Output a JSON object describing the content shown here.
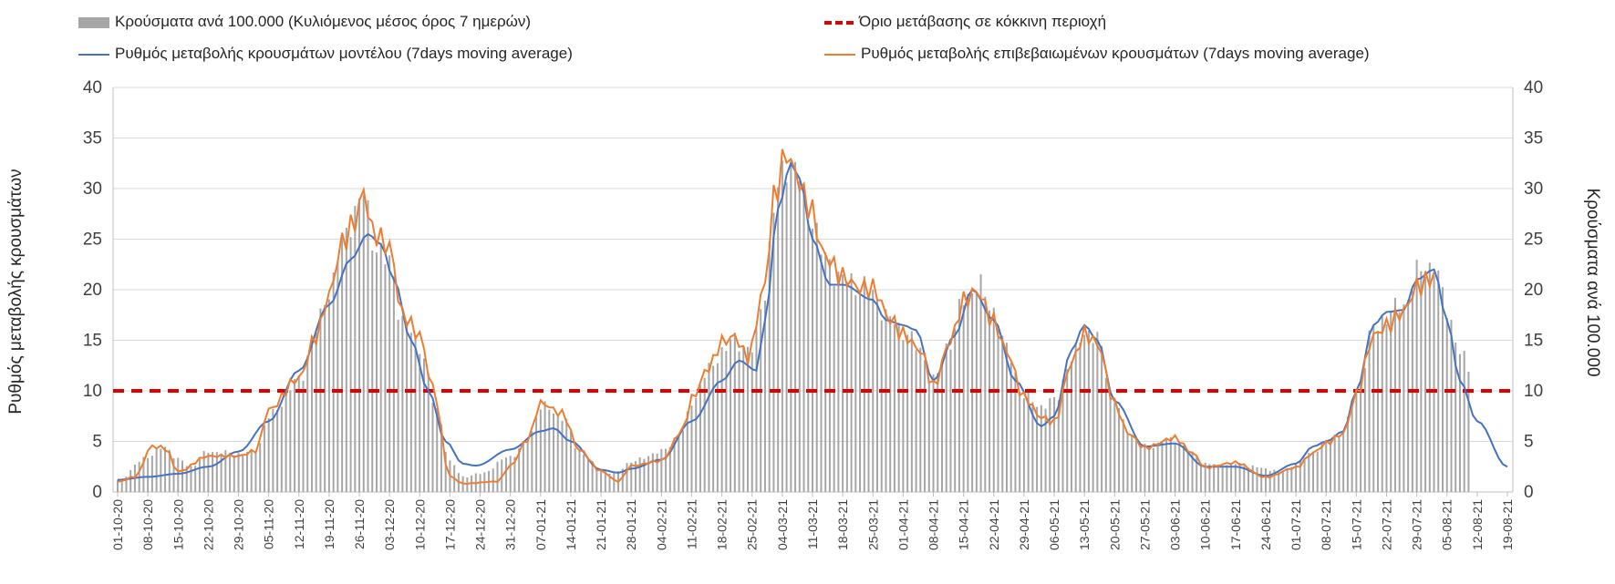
{
  "chart_data": {
    "type": "bar+line",
    "legend": {
      "bars": "Κρούσματα ανά 100.000 (Κυλιόμενος μέσος όρος 7 ημερών)",
      "threshold": "Όριο μετάβασης σε κόκκινη περιοχή",
      "model": "Ρυθμός μεταβολής κρουσμάτων μοντέλου (7days moving average)",
      "confirmed": "Ρυθμός μεταβολής επιβεβαιωμένων κρουσμάτων (7days moving average)"
    },
    "ylabel_left": "Ρυθμός μεταβολής κρουσμάτων",
    "ylabel_right": "Κρούσματα ανά 100.000",
    "ylim": [
      0,
      40
    ],
    "yticks": [
      0,
      5,
      10,
      15,
      20,
      25,
      30,
      35,
      40
    ],
    "threshold": 10,
    "x_start": "2020-10-01",
    "x_end": "2021-08-19",
    "xtick_labels": [
      "01-10-20",
      "08-10-20",
      "15-10-20",
      "22-10-20",
      "29-10-20",
      "05-11-20",
      "12-11-20",
      "19-11-20",
      "26-11-20",
      "03-12-20",
      "10-12-20",
      "17-12-20",
      "24-12-20",
      "31-12-20",
      "07-01-21",
      "14-01-21",
      "21-01-21",
      "28-01-21",
      "04-02-21",
      "11-02-21",
      "18-02-21",
      "25-02-21",
      "04-03-21",
      "11-03-21",
      "18-03-21",
      "25-03-21",
      "01-04-21",
      "08-04-21",
      "15-04-21",
      "22-04-21",
      "29-04-21",
      "06-05-21",
      "13-05-21",
      "20-05-21",
      "27-05-21",
      "03-06-21",
      "10-06-21",
      "17-06-21",
      "24-06-21",
      "01-07-21",
      "08-07-21",
      "15-07-21",
      "22-07-21",
      "29-07-21",
      "05-08-21",
      "12-08-21",
      "19-08-21"
    ],
    "bars_keypoints": [
      [
        "01-10-20",
        1.2
      ],
      [
        "08-10-20",
        3.5
      ],
      [
        "12-10-20",
        4.5
      ],
      [
        "15-10-20",
        3.2
      ],
      [
        "18-10-20",
        2.5
      ],
      [
        "22-10-20",
        4.0
      ],
      [
        "29-10-20",
        3.8
      ],
      [
        "02-11-20",
        4.0
      ],
      [
        "05-11-20",
        7.5
      ],
      [
        "12-11-20",
        11.0
      ],
      [
        "16-11-20",
        16.0
      ],
      [
        "19-11-20",
        20.0
      ],
      [
        "22-11-20",
        24.5
      ],
      [
        "25-11-20",
        28.0
      ],
      [
        "27-11-20",
        29.5
      ],
      [
        "29-11-20",
        25.0
      ],
      [
        "03-12-20",
        22.5
      ],
      [
        "06-12-20",
        17.0
      ],
      [
        "10-12-20",
        14.5
      ],
      [
        "14-12-20",
        8.0
      ],
      [
        "17-12-20",
        3.0
      ],
      [
        "20-12-20",
        1.5
      ],
      [
        "24-12-20",
        1.8
      ],
      [
        "31-12-20",
        3.5
      ],
      [
        "04-01-21",
        5.0
      ],
      [
        "07-01-21",
        8.5
      ],
      [
        "12-01-21",
        7.5
      ],
      [
        "16-01-21",
        4.0
      ],
      [
        "21-01-21",
        2.2
      ],
      [
        "24-01-21",
        1.8
      ],
      [
        "28-01-21",
        3.0
      ],
      [
        "04-02-21",
        4.0
      ],
      [
        "09-02-21",
        6.0
      ],
      [
        "11-02-21",
        9.0
      ],
      [
        "15-02-21",
        12.0
      ],
      [
        "18-02-21",
        14.0
      ],
      [
        "21-02-21",
        15.0
      ],
      [
        "25-02-21",
        14.0
      ],
      [
        "28-02-21",
        20.0
      ],
      [
        "02-03-21",
        28.0
      ],
      [
        "05-03-21",
        33.0
      ],
      [
        "07-03-21",
        32.0
      ],
      [
        "10-03-21",
        28.0
      ],
      [
        "14-03-21",
        23.0
      ],
      [
        "18-03-21",
        21.0
      ],
      [
        "22-03-21",
        20.5
      ],
      [
        "25-03-21",
        19.5
      ],
      [
        "29-03-21",
        17.0
      ],
      [
        "01-04-21",
        16.0
      ],
      [
        "05-04-21",
        14.0
      ],
      [
        "08-04-21",
        11.0
      ],
      [
        "12-04-21",
        15.0
      ],
      [
        "15-04-21",
        19.0
      ],
      [
        "18-04-21",
        20.5
      ],
      [
        "22-04-21",
        18.0
      ],
      [
        "25-04-21",
        14.0
      ],
      [
        "29-04-21",
        9.5
      ],
      [
        "03-05-21",
        8.5
      ],
      [
        "06-05-21",
        9.0
      ],
      [
        "10-05-21",
        13.0
      ],
      [
        "13-05-21",
        16.0
      ],
      [
        "16-05-21",
        15.0
      ],
      [
        "20-05-21",
        9.0
      ],
      [
        "23-05-21",
        6.0
      ],
      [
        "27-05-21",
        4.5
      ],
      [
        "03-06-21",
        5.2
      ],
      [
        "07-06-21",
        3.8
      ],
      [
        "10-06-21",
        2.8
      ],
      [
        "14-06-21",
        2.6
      ],
      [
        "17-06-21",
        2.8
      ],
      [
        "21-06-21",
        2.5
      ],
      [
        "24-06-21",
        2.3
      ],
      [
        "28-06-21",
        2.0
      ],
      [
        "01-07-21",
        2.8
      ],
      [
        "05-07-21",
        4.0
      ],
      [
        "08-07-21",
        5.0
      ],
      [
        "12-07-21",
        6.0
      ],
      [
        "15-07-21",
        10.0
      ],
      [
        "19-07-21",
        16.0
      ],
      [
        "22-07-21",
        17.5
      ],
      [
        "26-07-21",
        18.5
      ],
      [
        "29-07-21",
        21.5
      ],
      [
        "02-08-21",
        22.5
      ],
      [
        "05-08-21",
        18.0
      ],
      [
        "08-08-21",
        14.0
      ],
      [
        "10-08-21",
        12.0
      ]
    ],
    "model_keypoints": [
      [
        "01-10-20",
        1.2
      ],
      [
        "08-10-20",
        1.5
      ],
      [
        "15-10-20",
        1.8
      ],
      [
        "22-10-20",
        2.5
      ],
      [
        "29-10-20",
        4.0
      ],
      [
        "05-11-20",
        7.0
      ],
      [
        "12-11-20",
        12.0
      ],
      [
        "19-11-20",
        18.5
      ],
      [
        "24-11-20",
        23.0
      ],
      [
        "28-11-20",
        25.5
      ],
      [
        "01-12-20",
        24.5
      ],
      [
        "04-12-20",
        21.0
      ],
      [
        "08-12-20",
        15.0
      ],
      [
        "12-12-20",
        10.0
      ],
      [
        "16-12-20",
        5.0
      ],
      [
        "20-12-20",
        2.8
      ],
      [
        "23-12-20",
        2.6
      ],
      [
        "31-12-20",
        4.2
      ],
      [
        "07-01-21",
        6.0
      ],
      [
        "10-01-21",
        6.3
      ],
      [
        "14-01-21",
        5.0
      ],
      [
        "21-01-21",
        2.2
      ],
      [
        "25-01-21",
        1.9
      ],
      [
        "28-01-21",
        2.3
      ],
      [
        "04-02-21",
        3.2
      ],
      [
        "11-02-21",
        7.0
      ],
      [
        "18-02-21",
        11.0
      ],
      [
        "22-02-21",
        13.0
      ],
      [
        "26-02-21",
        12.0
      ],
      [
        "28-02-21",
        17.0
      ],
      [
        "03-03-21",
        28.0
      ],
      [
        "06-03-21",
        32.5
      ],
      [
        "08-03-21",
        31.0
      ],
      [
        "11-03-21",
        25.0
      ],
      [
        "15-03-21",
        20.5
      ],
      [
        "18-03-21",
        20.5
      ],
      [
        "25-03-21",
        19.0
      ],
      [
        "28-03-21",
        17.0
      ],
      [
        "01-04-21",
        16.5
      ],
      [
        "04-04-21",
        16.0
      ],
      [
        "08-04-21",
        11.0
      ],
      [
        "13-04-21",
        15.5
      ],
      [
        "17-04-21",
        20.0
      ],
      [
        "22-04-21",
        17.0
      ],
      [
        "27-04-21",
        11.0
      ],
      [
        "03-05-21",
        6.5
      ],
      [
        "06-05-21",
        7.5
      ],
      [
        "10-05-21",
        14.0
      ],
      [
        "13-05-21",
        16.5
      ],
      [
        "16-05-21",
        15.0
      ],
      [
        "20-05-21",
        9.0
      ],
      [
        "27-05-21",
        4.5
      ],
      [
        "03-06-21",
        4.8
      ],
      [
        "10-06-21",
        2.5
      ],
      [
        "17-06-21",
        2.5
      ],
      [
        "24-06-21",
        1.6
      ],
      [
        "01-07-21",
        2.8
      ],
      [
        "05-07-21",
        4.5
      ],
      [
        "08-07-21",
        5.0
      ],
      [
        "12-07-21",
        6.0
      ],
      [
        "15-07-21",
        10.0
      ],
      [
        "19-07-21",
        16.5
      ],
      [
        "22-07-21",
        17.8
      ],
      [
        "26-07-21",
        18.0
      ],
      [
        "29-07-21",
        21.0
      ],
      [
        "02-08-21",
        22.0
      ],
      [
        "05-08-21",
        17.0
      ],
      [
        "08-08-21",
        11.0
      ],
      [
        "12-08-21",
        7.0
      ],
      [
        "19-08-21",
        2.5
      ]
    ],
    "confirmed_keypoints": [
      [
        "01-10-20",
        1.0
      ],
      [
        "05-10-20",
        1.5
      ],
      [
        "09-10-20",
        4.5
      ],
      [
        "12-10-20",
        4.3
      ],
      [
        "15-10-20",
        2.0
      ],
      [
        "22-10-20",
        3.5
      ],
      [
        "29-10-20",
        3.5
      ],
      [
        "02-11-20",
        4.0
      ],
      [
        "05-11-20",
        8.0
      ],
      [
        "12-11-20",
        11.0
      ],
      [
        "16-11-20",
        15.0
      ],
      [
        "19-11-20",
        19.0
      ],
      [
        "22-11-20",
        24.0
      ],
      [
        "25-11-20",
        26.0
      ],
      [
        "27-11-20",
        29.0
      ],
      [
        "29-11-20",
        25.0
      ],
      [
        "03-12-20",
        23.5
      ],
      [
        "06-12-20",
        17.0
      ],
      [
        "10-12-20",
        15.0
      ],
      [
        "13-12-20",
        10.0
      ],
      [
        "17-12-20",
        1.5
      ],
      [
        "20-12-20",
        0.8
      ],
      [
        "28-12-20",
        1.0
      ],
      [
        "31-12-20",
        2.5
      ],
      [
        "04-01-21",
        5.0
      ],
      [
        "07-01-21",
        8.5
      ],
      [
        "12-01-21",
        7.5
      ],
      [
        "16-01-21",
        4.0
      ],
      [
        "21-01-21",
        2.0
      ],
      [
        "25-01-21",
        1.0
      ],
      [
        "28-01-21",
        2.5
      ],
      [
        "04-02-21",
        3.0
      ],
      [
        "09-02-21",
        6.0
      ],
      [
        "11-02-21",
        9.0
      ],
      [
        "15-02-21",
        12.0
      ],
      [
        "18-02-21",
        14.5
      ],
      [
        "21-02-21",
        15.0
      ],
      [
        "24-02-21",
        13.0
      ],
      [
        "28-02-21",
        20.0
      ],
      [
        "02-03-21",
        28.5
      ],
      [
        "05-03-21",
        33.0
      ],
      [
        "07-03-21",
        31.0
      ],
      [
        "10-03-21",
        28.0
      ],
      [
        "14-03-21",
        23.0
      ],
      [
        "18-03-21",
        21.0
      ],
      [
        "22-03-21",
        20.0
      ],
      [
        "25-03-21",
        20.0
      ],
      [
        "29-03-21",
        17.0
      ],
      [
        "01-04-21",
        15.5
      ],
      [
        "05-04-21",
        14.0
      ],
      [
        "08-04-21",
        10.5
      ],
      [
        "12-04-21",
        15.0
      ],
      [
        "15-04-21",
        19.0
      ],
      [
        "18-04-21",
        20.0
      ],
      [
        "22-04-21",
        17.0
      ],
      [
        "25-04-21",
        14.0
      ],
      [
        "29-04-21",
        9.5
      ],
      [
        "03-05-21",
        7.5
      ],
      [
        "06-05-21",
        7.0
      ],
      [
        "10-05-21",
        13.0
      ],
      [
        "13-05-21",
        16.0
      ],
      [
        "16-05-21",
        15.0
      ],
      [
        "20-05-21",
        9.0
      ],
      [
        "23-05-21",
        6.0
      ],
      [
        "27-05-21",
        4.5
      ],
      [
        "03-06-21",
        5.5
      ],
      [
        "07-06-21",
        4.0
      ],
      [
        "10-06-21",
        2.5
      ],
      [
        "17-06-21",
        3.0
      ],
      [
        "24-06-21",
        1.5
      ],
      [
        "01-07-21",
        2.5
      ],
      [
        "05-07-21",
        4.0
      ],
      [
        "08-07-21",
        5.0
      ],
      [
        "12-07-21",
        6.0
      ],
      [
        "15-07-21",
        10.0
      ],
      [
        "19-07-21",
        16.0
      ],
      [
        "22-07-21",
        17.0
      ],
      [
        "26-07-21",
        18.5
      ],
      [
        "29-07-21",
        21.0
      ],
      [
        "02-08-21",
        22.0
      ]
    ]
  }
}
